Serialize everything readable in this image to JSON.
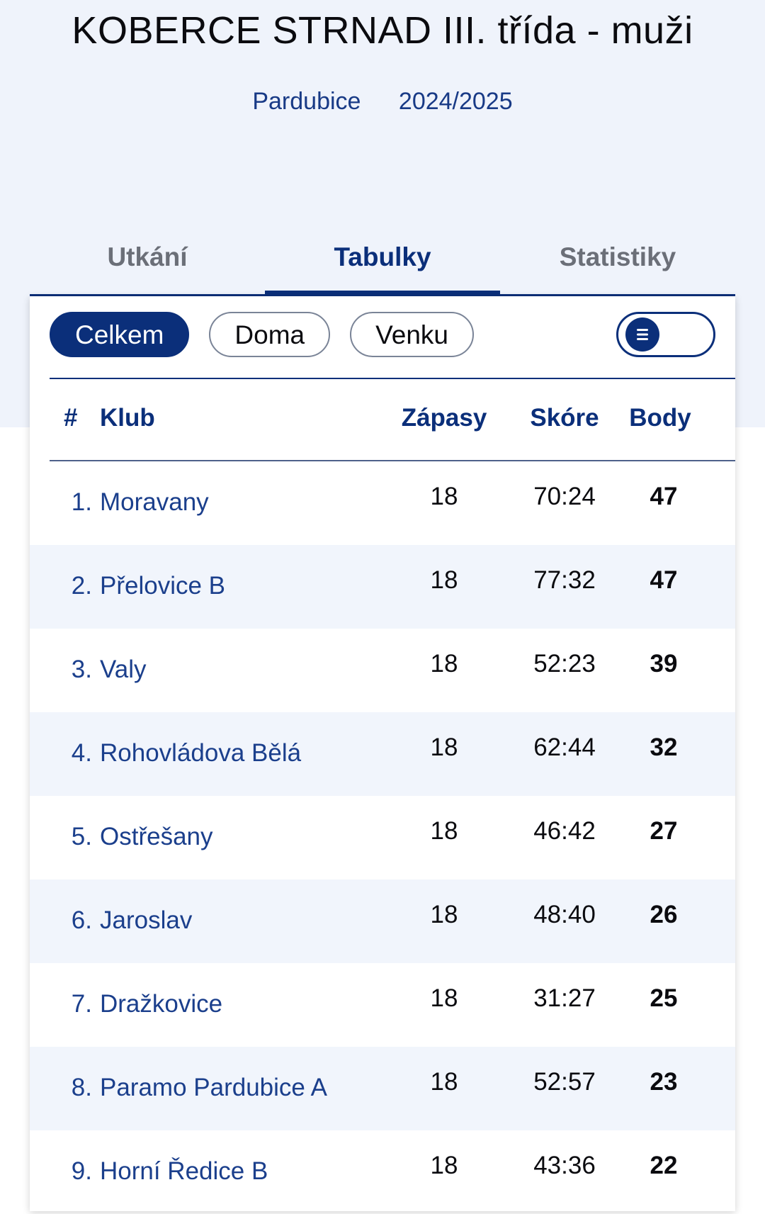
{
  "league": {
    "title": "KOBERCE STRNAD III. třída - muži",
    "region": "Pardubice",
    "season": "2024/2025"
  },
  "tabs": [
    {
      "label": "Utkání",
      "active": false
    },
    {
      "label": "Tabulky",
      "active": true
    },
    {
      "label": "Statistiky",
      "active": false
    }
  ],
  "filters": [
    {
      "label": "Celkem",
      "active": true
    },
    {
      "label": "Doma",
      "active": false
    },
    {
      "label": "Venku",
      "active": false
    }
  ],
  "view_toggle": {
    "icon": "list-icon"
  },
  "table": {
    "headers": {
      "rank": "#",
      "club": "Klub",
      "games": "Zápasy",
      "score": "Skóre",
      "points": "Body"
    },
    "rows": [
      {
        "rank": "1.",
        "club": "Moravany",
        "games": "18",
        "score": "70:24",
        "points": "47"
      },
      {
        "rank": "2.",
        "club": "Přelovice B",
        "games": "18",
        "score": "77:32",
        "points": "47"
      },
      {
        "rank": "3.",
        "club": "Valy",
        "games": "18",
        "score": "52:23",
        "points": "39"
      },
      {
        "rank": "4.",
        "club": "Rohovládova Bělá",
        "games": "18",
        "score": "62:44",
        "points": "32"
      },
      {
        "rank": "5.",
        "club": "Ostřešany",
        "games": "18",
        "score": "46:42",
        "points": "27"
      },
      {
        "rank": "6.",
        "club": "Jaroslav",
        "games": "18",
        "score": "48:40",
        "points": "26"
      },
      {
        "rank": "7.",
        "club": "Dražkovice",
        "games": "18",
        "score": "31:27",
        "points": "25"
      },
      {
        "rank": "8.",
        "club": "Paramo Pardubice A",
        "games": "18",
        "score": "52:57",
        "points": "23"
      },
      {
        "rank": "9.",
        "club": "Horní Ředice B",
        "games": "18",
        "score": "43:36",
        "points": "22"
      }
    ]
  },
  "colors": {
    "primary": "#0b2f7a",
    "hero_bg": "#eff3fb",
    "row_alt": "#f1f5fc"
  }
}
